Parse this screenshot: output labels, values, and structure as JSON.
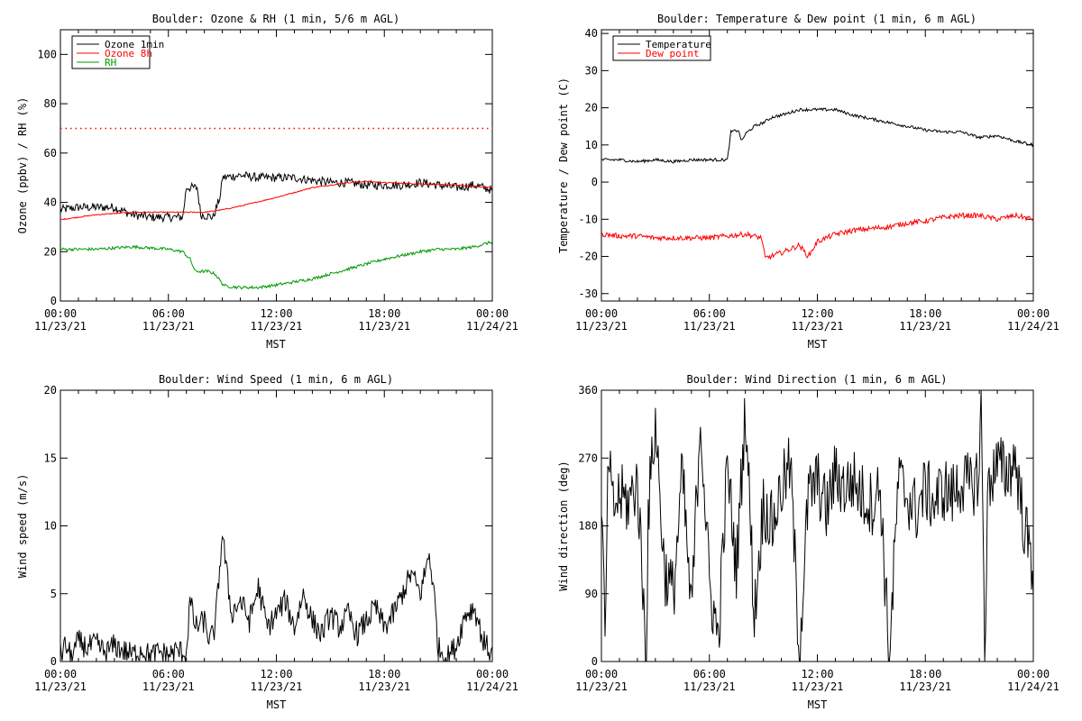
{
  "chart_data": [
    {
      "type": "line",
      "title": "Boulder: Ozone & RH (1 min, 5/6 m AGL)",
      "ylabel": "Ozone (ppbv) / RH (%)",
      "xlabel": "",
      "ylim": [
        0,
        110
      ],
      "yticks": [
        0,
        20,
        40,
        60,
        80,
        100
      ],
      "x_range_hours": [
        0,
        24
      ],
      "xticks": [
        {
          "time": "00:00",
          "date": "11/23/21"
        },
        {
          "time": "06:00",
          "date": "11/23/21"
        },
        {
          "time": "12:00",
          "date": "11/23/21"
        },
        {
          "time": "18:00",
          "date": "11/23/21"
        },
        {
          "time": "00:00",
          "date": "11/24/21"
        }
      ],
      "legend": "top-left",
      "reference_line": {
        "y": 70,
        "color": "#ff0000",
        "style": "dotted"
      },
      "series": [
        {
          "name": "Ozone 1min",
          "color": "#000000",
          "x": [
            0,
            1,
            2,
            3,
            4,
            5,
            6,
            6.8,
            7,
            7.6,
            7.8,
            8.5,
            8.9,
            9,
            10,
            11,
            12,
            13,
            14,
            15,
            16,
            17,
            18,
            19,
            20,
            21,
            22,
            23,
            24
          ],
          "y": [
            37,
            38,
            38,
            38,
            35,
            34,
            34,
            34,
            46,
            46,
            35,
            34,
            43,
            50,
            51,
            50,
            50,
            50,
            49,
            48,
            48,
            47,
            47,
            47,
            48,
            47,
            46,
            47,
            45
          ]
        },
        {
          "name": "Ozone 8h",
          "color": "#ff0000",
          "x": [
            0,
            2,
            4,
            6,
            8,
            9,
            10,
            12,
            14,
            16,
            17,
            18,
            20,
            22,
            24
          ],
          "y": [
            33,
            35,
            36,
            36,
            36,
            37,
            38.5,
            42,
            46,
            48,
            48.5,
            48,
            47.5,
            47,
            46
          ]
        },
        {
          "name": "RH",
          "color": "#009900",
          "x": [
            0,
            2,
            4,
            6,
            6.8,
            7.2,
            7.5,
            8.2,
            8.6,
            9,
            9.2,
            10,
            11,
            12,
            14,
            16,
            18,
            20,
            21,
            22,
            23,
            24
          ],
          "y": [
            21,
            21,
            22,
            21,
            20,
            17,
            12,
            12,
            11,
            7,
            6,
            5.5,
            5.5,
            6.5,
            9,
            13,
            17,
            20,
            21,
            21,
            22,
            24
          ]
        }
      ]
    },
    {
      "type": "line",
      "title": "Boulder: Temperature & Dew point (1 min, 6 m AGL)",
      "ylabel": "Temperature / Dew point (C)",
      "xlabel": "MST",
      "ylim": [
        -32,
        41
      ],
      "yticks": [
        -30,
        -20,
        -10,
        0,
        10,
        20,
        30,
        40
      ],
      "x_range_hours": [
        0,
        24
      ],
      "xticks": [
        {
          "time": "00:00",
          "date": "11/23/21"
        },
        {
          "time": "06:00",
          "date": "11/23/21"
        },
        {
          "time": "12:00",
          "date": "11/23/21"
        },
        {
          "time": "18:00",
          "date": "11/23/21"
        },
        {
          "time": "00:00",
          "date": "11/24/21"
        }
      ],
      "legend": "top-left",
      "series": [
        {
          "name": "Temperature",
          "color": "#000000",
          "x": [
            0,
            0.5,
            1,
            2,
            3,
            4,
            5,
            6,
            7,
            7.2,
            7.6,
            7.8,
            8,
            8.5,
            9,
            9.5,
            10,
            11,
            12,
            13,
            14,
            15,
            16,
            17,
            18,
            19,
            20,
            21,
            22,
            23,
            24
          ],
          "y": [
            6,
            6,
            6,
            5.5,
            6,
            5.5,
            6,
            6,
            6,
            13.5,
            14,
            11,
            13,
            15,
            16,
            17.5,
            18,
            19.5,
            19.5,
            19.5,
            18,
            17,
            16,
            15,
            14,
            13.5,
            13.5,
            12,
            12.5,
            11,
            10
          ]
        },
        {
          "name": "Dew point",
          "color": "#ff0000",
          "x": [
            0,
            1,
            2,
            3,
            4,
            5,
            6,
            7,
            8,
            8.9,
            9.1,
            10,
            11,
            11.5,
            12,
            13,
            14,
            15,
            16,
            17,
            18,
            19,
            20,
            21,
            22,
            23,
            24
          ],
          "y": [
            -14,
            -14.5,
            -14.5,
            -15,
            -15,
            -15,
            -15,
            -14.5,
            -14,
            -15,
            -20.5,
            -19,
            -17,
            -20,
            -16,
            -14,
            -13,
            -12.5,
            -12,
            -11,
            -10.5,
            -9.5,
            -9,
            -9,
            -10,
            -9,
            -10
          ]
        }
      ]
    },
    {
      "type": "line",
      "title": "Boulder: Wind Speed (1 min, 6 m AGL)",
      "ylabel": "Wind speed (m/s)",
      "xlabel": "MST",
      "ylim": [
        0,
        20
      ],
      "yticks": [
        0,
        5,
        10,
        15,
        20
      ],
      "x_range_hours": [
        0,
        24
      ],
      "xticks": [
        {
          "time": "00:00",
          "date": "11/23/21"
        },
        {
          "time": "06:00",
          "date": "11/23/21"
        },
        {
          "time": "12:00",
          "date": "11/23/21"
        },
        {
          "time": "18:00",
          "date": "11/23/21"
        },
        {
          "time": "00:00",
          "date": "11/24/21"
        }
      ],
      "series": [
        {
          "name": "",
          "color": "#000000",
          "x": [
            0,
            0.3,
            0.6,
            1,
            1.5,
            2,
            2.5,
            3,
            3.5,
            4,
            4.5,
            5,
            5.5,
            6,
            6.5,
            7,
            7.2,
            7.5,
            8,
            8.3,
            8.6,
            9,
            9.2,
            9.5,
            10,
            10.5,
            11,
            11.5,
            12,
            12.5,
            13,
            13.5,
            14,
            14.5,
            15,
            15.5,
            16,
            16.5,
            17,
            17.5,
            18,
            18.5,
            19,
            19.5,
            20,
            20.5,
            20.8,
            21,
            21.5,
            22,
            22.5,
            23,
            23.5,
            24
          ],
          "y": [
            0.5,
            1.2,
            0.3,
            1.5,
            1.0,
            1.3,
            0.6,
            1.2,
            0.8,
            0.5,
            0.9,
            0.4,
            0.7,
            0.5,
            0.8,
            0.6,
            4.5,
            2.5,
            3.0,
            1.5,
            2.5,
            9.5,
            7.0,
            3.5,
            4.5,
            3.0,
            5.5,
            2.5,
            3.5,
            4.5,
            2.5,
            5.0,
            3.0,
            2.0,
            3.5,
            2.5,
            3.5,
            2.0,
            3.0,
            4.0,
            2.5,
            3.5,
            5.0,
            6.5,
            5.0,
            8.0,
            4.5,
            1.0,
            0.3,
            1.2,
            3.5,
            4.0,
            1.5,
            0.5
          ]
        }
      ]
    },
    {
      "type": "line",
      "title": "Boulder: Wind Direction (1 min, 6 m AGL)",
      "ylabel": "Wind direction (deg)",
      "xlabel": "MST",
      "ylim": [
        0,
        360
      ],
      "yticks": [
        0,
        90,
        180,
        270,
        360
      ],
      "x_range_hours": [
        0,
        24
      ],
      "xticks": [
        {
          "time": "00:00",
          "date": "11/23/21"
        },
        {
          "time": "06:00",
          "date": "11/23/21"
        },
        {
          "time": "12:00",
          "date": "11/23/21"
        },
        {
          "time": "18:00",
          "date": "11/23/21"
        },
        {
          "time": "00:00",
          "date": "11/24/21"
        }
      ],
      "series": [
        {
          "name": "",
          "color": "#000000",
          "x": [
            0,
            0.2,
            0.4,
            0.6,
            1,
            1.5,
            2,
            2.5,
            2.6,
            3,
            3.5,
            4,
            4.5,
            5,
            5.5,
            6,
            6.5,
            7,
            7.5,
            8,
            8.5,
            9,
            9.5,
            10,
            10.5,
            11,
            11.5,
            12,
            12.5,
            13,
            13.5,
            14,
            14.5,
            15,
            15.5,
            16,
            16.5,
            17,
            17.5,
            18,
            18.5,
            19,
            19.5,
            20,
            20.5,
            21,
            21.1,
            21.3,
            21.5,
            22,
            22.5,
            23,
            23.5,
            24
          ],
          "y": [
            230,
            20,
            280,
            200,
            220,
            210,
            240,
            5,
            200,
            320,
            120,
            90,
            250,
            60,
            330,
            100,
            30,
            260,
            120,
            340,
            60,
            210,
            180,
            230,
            260,
            10,
            220,
            240,
            200,
            250,
            230,
            240,
            220,
            210,
            230,
            0,
            240,
            220,
            200,
            230,
            210,
            230,
            220,
            240,
            230,
            250,
            360,
            20,
            240,
            260,
            250,
            270,
            180,
            120
          ]
        }
      ]
    }
  ],
  "shared_xlabel": "MST"
}
